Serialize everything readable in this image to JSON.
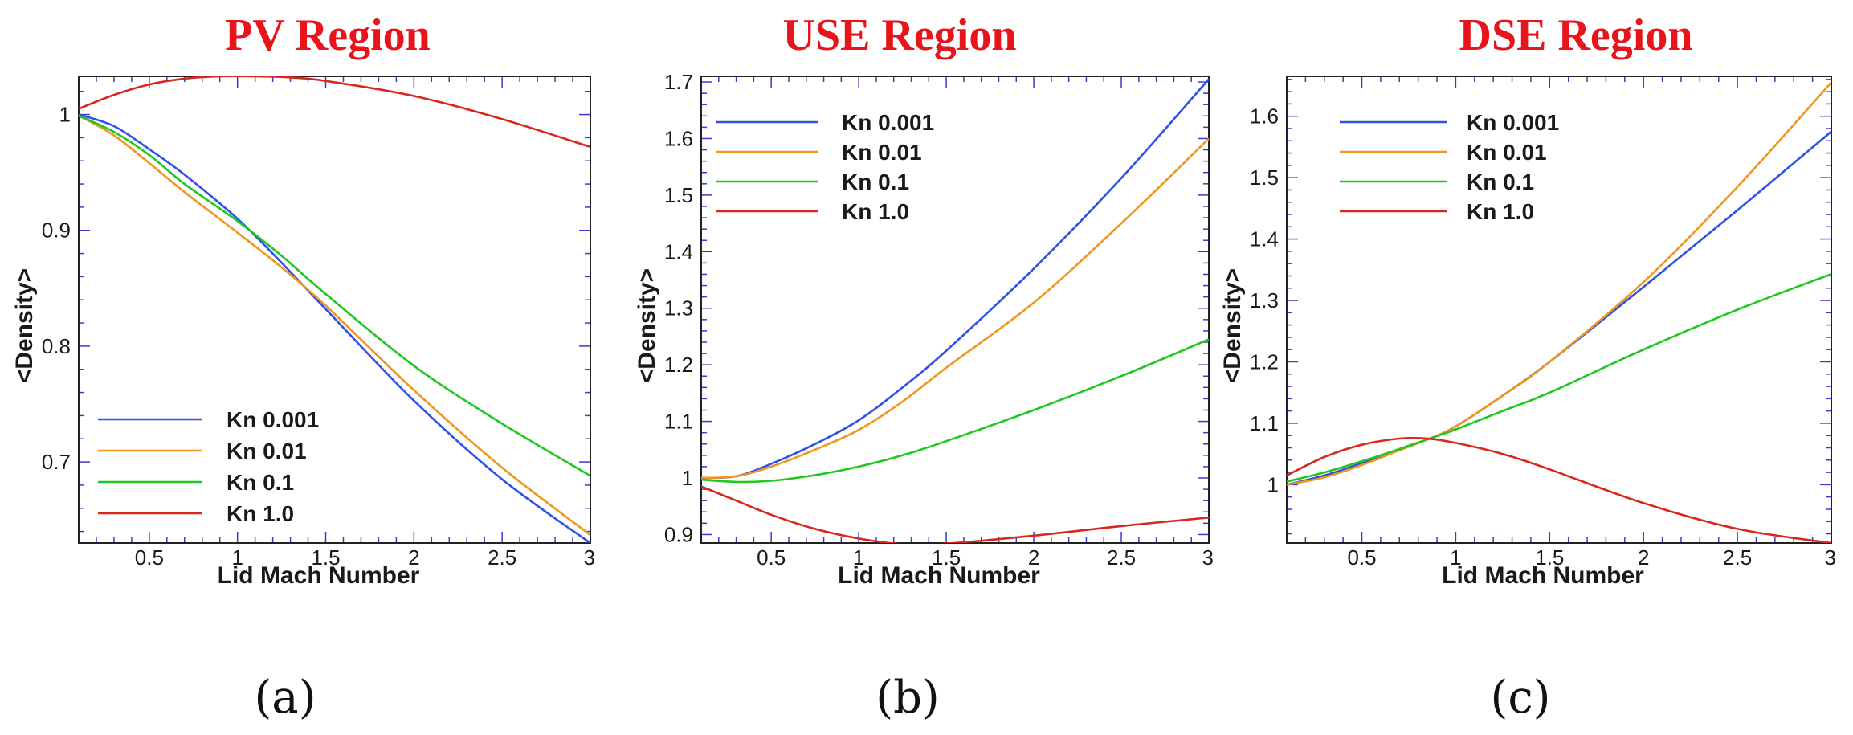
{
  "colors": {
    "title": "#e8141c",
    "kn_0_001": "#3050e8",
    "kn_0_01": "#f0961e",
    "kn_0_1": "#1ec81e",
    "kn_1_0": "#d8281e",
    "tick": "#3a3ad0"
  },
  "chart_data": [
    {
      "type": "line",
      "panel": "a",
      "title": "PV Region",
      "caption": "(a)",
      "xlabel": "Lid Mach Number",
      "ylabel": "<Density>",
      "xlim": [
        0.1,
        3
      ],
      "ylim": [
        0.63,
        1.033
      ],
      "xticks": [
        0.5,
        1,
        1.5,
        2,
        2.5,
        3
      ],
      "xtick_labels": [
        "0.5",
        "1",
        "1.5",
        "2",
        "2.5",
        "3"
      ],
      "yticks": [
        0.7,
        0.8,
        0.9,
        1
      ],
      "ytick_labels": [
        "0.7",
        "0.8",
        "0.9",
        "1"
      ],
      "legend_position": "bottom-left",
      "series": [
        {
          "name": "Kn 0.001",
          "color_key": "kn_0_001",
          "x": [
            0.1,
            0.3,
            0.5,
            0.7,
            1.0,
            1.25,
            1.5,
            2.0,
            2.5,
            3.0
          ],
          "y": [
            1.0,
            0.99,
            0.97,
            0.948,
            0.91,
            0.872,
            0.832,
            0.753,
            0.685,
            0.63
          ]
        },
        {
          "name": "Kn 0.01",
          "color_key": "kn_0_01",
          "x": [
            0.1,
            0.3,
            0.5,
            0.7,
            1.0,
            1.25,
            1.5,
            2.0,
            2.5,
            3.0
          ],
          "y": [
            0.999,
            0.982,
            0.958,
            0.933,
            0.898,
            0.868,
            0.835,
            0.762,
            0.695,
            0.637
          ]
        },
        {
          "name": "Kn 0.1",
          "color_key": "kn_0_1",
          "x": [
            0.1,
            0.3,
            0.5,
            0.7,
            1.0,
            1.25,
            1.5,
            2.0,
            2.5,
            3.0
          ],
          "y": [
            0.999,
            0.985,
            0.965,
            0.94,
            0.908,
            0.878,
            0.845,
            0.783,
            0.733,
            0.688
          ]
        },
        {
          "name": "Kn 1.0",
          "color_key": "kn_1_0",
          "x": [
            0.1,
            0.3,
            0.5,
            0.7,
            0.9,
            1.1,
            1.3,
            1.5,
            2.0,
            2.5,
            3.0
          ],
          "y": [
            1.005,
            1.017,
            1.026,
            1.031,
            1.033,
            1.033,
            1.032,
            1.029,
            1.016,
            0.996,
            0.972
          ]
        }
      ]
    },
    {
      "type": "line",
      "panel": "b",
      "title": "USE Region",
      "caption": "(b)",
      "xlabel": "Lid Mach Number",
      "ylabel": "<Density>",
      "xlim": [
        0.1,
        3
      ],
      "ylim": [
        0.885,
        1.71
      ],
      "xticks": [
        0.5,
        1,
        1.5,
        2,
        2.5,
        3
      ],
      "xtick_labels": [
        "0.5",
        "1",
        "1.5",
        "2",
        "2.5",
        "3"
      ],
      "yticks": [
        0.9,
        1,
        1.1,
        1.2,
        1.3,
        1.4,
        1.5,
        1.6,
        1.7
      ],
      "ytick_labels": [
        "0.9",
        "1",
        "1.1",
        "1.2",
        "1.3",
        "1.4",
        "1.5",
        "1.6",
        "1.7"
      ],
      "legend_position": "top-left",
      "series": [
        {
          "name": "Kn 0.001",
          "color_key": "kn_0_001",
          "x": [
            0.1,
            0.3,
            0.5,
            0.75,
            1.0,
            1.25,
            1.5,
            2.0,
            2.5,
            3.0
          ],
          "y": [
            1.0,
            1.003,
            1.025,
            1.06,
            1.102,
            1.16,
            1.225,
            1.37,
            1.53,
            1.705
          ]
        },
        {
          "name": "Kn 0.01",
          "color_key": "kn_0_01",
          "x": [
            0.1,
            0.3,
            0.5,
            0.75,
            1.0,
            1.25,
            1.5,
            2.0,
            2.5,
            3.0
          ],
          "y": [
            1.0,
            1.003,
            1.02,
            1.05,
            1.085,
            1.135,
            1.195,
            1.31,
            1.45,
            1.6
          ]
        },
        {
          "name": "Kn 0.1",
          "color_key": "kn_0_1",
          "x": [
            0.1,
            0.3,
            0.5,
            0.75,
            1.0,
            1.25,
            1.5,
            2.0,
            2.5,
            3.0
          ],
          "y": [
            0.997,
            0.993,
            0.995,
            1.005,
            1.02,
            1.04,
            1.065,
            1.12,
            1.18,
            1.245
          ]
        },
        {
          "name": "Kn 1.0",
          "color_key": "kn_1_0",
          "x": [
            0.1,
            0.3,
            0.5,
            0.75,
            1.0,
            1.25,
            1.5,
            2.0,
            2.5,
            3.0
          ],
          "y": [
            0.985,
            0.96,
            0.935,
            0.91,
            0.893,
            0.883,
            0.884,
            0.898,
            0.915,
            0.93
          ]
        }
      ]
    },
    {
      "type": "line",
      "panel": "c",
      "title": "DSE Region",
      "caption": "(c)",
      "xlabel": "Lid Mach Number",
      "ylabel": "<Density>",
      "xlim": [
        0.1,
        3
      ],
      "ylim": [
        0.905,
        1.665
      ],
      "xticks": [
        0.5,
        1,
        1.5,
        2,
        2.5,
        3
      ],
      "xtick_labels": [
        "0.5",
        "1",
        "1.5",
        "2",
        "2.5",
        "3"
      ],
      "yticks": [
        1,
        1.1,
        1.2,
        1.3,
        1.4,
        1.5,
        1.6
      ],
      "ytick_labels": [
        "1",
        "1.1",
        "1.2",
        "1.3",
        "1.4",
        "1.5",
        "1.6"
      ],
      "legend_position": "top-left",
      "series": [
        {
          "name": "Kn 0.001",
          "color_key": "kn_0_001",
          "x": [
            0.1,
            0.3,
            0.5,
            0.7,
            0.87,
            1.0,
            1.25,
            1.5,
            2.0,
            2.5,
            3.0
          ],
          "y": [
            1.0,
            1.015,
            1.035,
            1.058,
            1.076,
            1.095,
            1.145,
            1.2,
            1.322,
            1.447,
            1.575
          ]
        },
        {
          "name": "Kn 0.01",
          "color_key": "kn_0_01",
          "x": [
            0.1,
            0.3,
            0.5,
            0.7,
            0.87,
            1.0,
            1.25,
            1.5,
            2.0,
            2.5,
            3.0
          ],
          "y": [
            1.0,
            1.012,
            1.032,
            1.056,
            1.076,
            1.095,
            1.145,
            1.2,
            1.33,
            1.485,
            1.655
          ]
        },
        {
          "name": "Kn 0.1",
          "color_key": "kn_0_1",
          "x": [
            0.1,
            0.3,
            0.5,
            0.7,
            0.87,
            1.0,
            1.25,
            1.5,
            2.0,
            2.5,
            3.0
          ],
          "y": [
            1.005,
            1.02,
            1.038,
            1.058,
            1.076,
            1.09,
            1.12,
            1.15,
            1.22,
            1.285,
            1.343
          ]
        },
        {
          "name": "Kn 1.0",
          "color_key": "kn_1_0",
          "x": [
            0.1,
            0.3,
            0.5,
            0.7,
            0.85,
            1.0,
            1.25,
            1.5,
            2.0,
            2.5,
            3.0
          ],
          "y": [
            1.015,
            1.045,
            1.065,
            1.075,
            1.075,
            1.068,
            1.05,
            1.025,
            0.97,
            0.928,
            0.905
          ]
        }
      ]
    }
  ]
}
